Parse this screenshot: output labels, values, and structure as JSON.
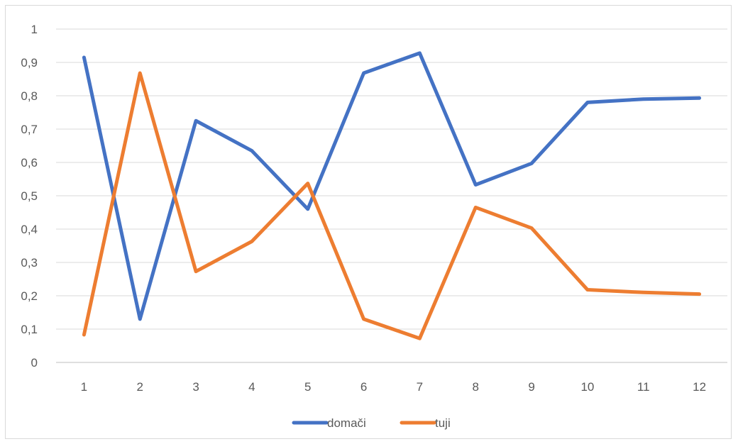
{
  "chart_data": {
    "type": "line",
    "categories": [
      "1",
      "2",
      "3",
      "4",
      "5",
      "6",
      "7",
      "8",
      "9",
      "10",
      "11",
      "12"
    ],
    "series": [
      {
        "name": "domači",
        "color": "#4472C4",
        "values": [
          0.915,
          0.13,
          0.725,
          0.635,
          0.46,
          0.868,
          0.928,
          0.533,
          0.597,
          0.78,
          0.79,
          0.793
        ]
      },
      {
        "name": "tuji",
        "color": "#ED7D31",
        "values": [
          0.083,
          0.868,
          0.273,
          0.363,
          0.537,
          0.13,
          0.072,
          0.465,
          0.403,
          0.218,
          0.21,
          0.205
        ]
      }
    ],
    "ylim": [
      0,
      1
    ],
    "yticks": [
      "0",
      "0,1",
      "0,2",
      "0,3",
      "0,4",
      "0,5",
      "0,6",
      "0,7",
      "0,8",
      "0,9",
      "1"
    ],
    "grid": true,
    "legend_position": "bottom",
    "title": "",
    "xlabel": "",
    "ylabel": ""
  }
}
